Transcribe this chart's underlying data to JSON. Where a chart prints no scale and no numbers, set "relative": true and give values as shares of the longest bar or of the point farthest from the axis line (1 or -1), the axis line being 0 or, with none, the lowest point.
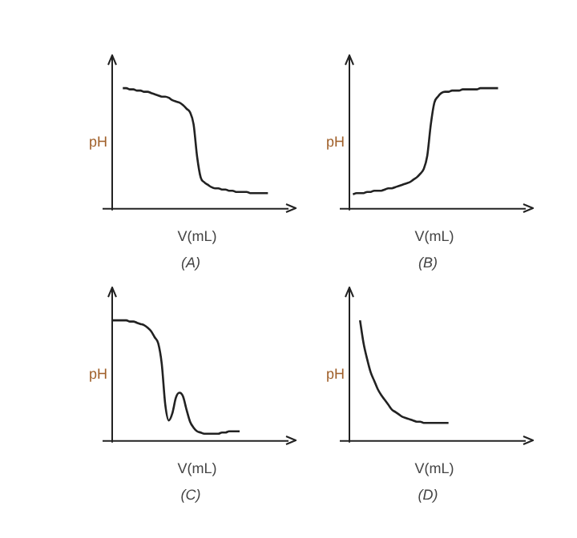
{
  "chart_data": [
    {
      "type": "line",
      "title": "(A)",
      "xlabel": "V(mL)",
      "ylabel": "pH",
      "relative": true,
      "marker": "none",
      "categories": [
        null,
        null,
        null,
        null,
        null,
        null,
        null,
        null,
        null,
        null,
        null,
        null,
        null,
        null,
        null,
        null,
        null,
        null,
        null,
        null,
        null,
        null,
        null,
        null,
        null,
        null,
        null,
        null,
        null,
        null,
        null,
        null,
        null,
        null,
        null,
        null,
        null,
        null,
        null,
        null,
        null,
        null,
        null,
        null,
        null,
        null,
        null,
        null,
        null
      ],
      "series": [
        {
          "color": "#222222",
          "values": [
            null,
            null,
            null,
            1.0,
            1.0,
            0.99,
            0.99,
            0.98,
            0.98,
            0.97,
            0.97,
            0.96,
            0.95,
            0.94,
            0.93,
            0.93,
            0.92,
            0.9,
            0.89,
            0.88,
            0.86,
            0.83,
            0.8,
            0.7,
            0.43,
            0.26,
            0.22,
            0.2,
            0.18,
            0.17,
            0.17,
            0.16,
            0.16,
            0.15,
            0.15,
            0.14,
            0.14,
            0.14,
            0.14,
            0.13,
            0.13,
            0.13,
            0.13,
            0.13,
            0.13,
            null,
            null,
            null,
            null
          ]
        }
      ]
    },
    {
      "type": "line",
      "title": "(B)",
      "xlabel": "V(mL)",
      "ylabel": "pH",
      "relative": true,
      "marker": "none",
      "categories": [
        null,
        null,
        null,
        null,
        null,
        null,
        null,
        null,
        null,
        null,
        null,
        null,
        null,
        null,
        null,
        null,
        null,
        null,
        null,
        null,
        null,
        null,
        null,
        null,
        null,
        null,
        null,
        null,
        null,
        null,
        null,
        null,
        null,
        null,
        null,
        null,
        null,
        null,
        null,
        null,
        null,
        null,
        null,
        null,
        null,
        null,
        null,
        null,
        null
      ],
      "series": [
        {
          "color": "#222222",
          "values": [
            null,
            0.12,
            0.13,
            0.13,
            0.13,
            0.14,
            0.14,
            0.15,
            0.15,
            0.15,
            0.16,
            0.17,
            0.17,
            0.18,
            0.19,
            0.2,
            0.21,
            0.22,
            0.24,
            0.26,
            0.29,
            0.33,
            0.44,
            0.7,
            0.88,
            0.93,
            0.96,
            0.97,
            0.97,
            0.98,
            0.98,
            0.98,
            0.99,
            0.99,
            0.99,
            0.99,
            0.99,
            1.0,
            1.0,
            1.0,
            1.0,
            1.0,
            1.0,
            null,
            null,
            null,
            null,
            null,
            null
          ]
        }
      ]
    },
    {
      "type": "line",
      "title": "(C)",
      "xlabel": "V(mL)",
      "ylabel": "pH",
      "relative": true,
      "marker": "none",
      "categories": [
        null,
        null,
        null,
        null,
        null,
        null,
        null,
        null,
        null,
        null,
        null,
        null,
        null,
        null,
        null,
        null,
        null,
        null,
        null,
        null,
        null,
        null,
        null,
        null,
        null,
        null,
        null,
        null,
        null,
        null,
        null,
        null,
        null,
        null,
        null,
        null,
        null,
        null,
        null,
        null,
        null,
        null,
        null,
        null,
        null,
        null,
        null,
        null,
        null
      ],
      "series": [
        {
          "color": "#222222",
          "values": [
            1.0,
            1.0,
            1.0,
            1.0,
            1.0,
            0.99,
            0.99,
            0.98,
            0.97,
            0.96,
            0.94,
            0.91,
            0.86,
            0.81,
            0.64,
            0.3,
            0.17,
            0.23,
            0.36,
            0.4,
            0.37,
            0.26,
            0.16,
            0.11,
            0.08,
            0.07,
            0.06,
            0.06,
            0.06,
            0.06,
            0.06,
            0.07,
            0.07,
            0.08,
            0.08,
            0.08,
            0.08,
            null,
            null,
            null,
            null,
            null,
            null,
            null,
            null,
            null,
            null,
            null,
            null
          ]
        }
      ]
    },
    {
      "type": "line",
      "title": "(D)",
      "xlabel": "V(mL)",
      "ylabel": "pH",
      "relative": true,
      "marker": "none",
      "categories": [
        null,
        null,
        null,
        null,
        null,
        null,
        null,
        null,
        null,
        null,
        null,
        null,
        null,
        null,
        null,
        null,
        null,
        null,
        null,
        null,
        null,
        null,
        null,
        null,
        null,
        null,
        null,
        null,
        null,
        null,
        null,
        null,
        null,
        null,
        null,
        null,
        null,
        null,
        null,
        null,
        null,
        null,
        null,
        null,
        null,
        null,
        null,
        null,
        null
      ],
      "series": [
        {
          "color": "#222222",
          "values": [
            null,
            null,
            null,
            1.0,
            0.81,
            0.68,
            0.57,
            0.5,
            0.43,
            0.38,
            0.34,
            0.3,
            0.26,
            0.24,
            0.22,
            0.2,
            0.19,
            0.18,
            0.17,
            0.16,
            0.16,
            0.15,
            0.15,
            0.15,
            0.15,
            0.15,
            0.15,
            0.15,
            0.15,
            null,
            null,
            null,
            null,
            null,
            null,
            null,
            null,
            null,
            null,
            null,
            null,
            null,
            null,
            null,
            null,
            null,
            null,
            null,
            null
          ]
        }
      ]
    }
  ]
}
